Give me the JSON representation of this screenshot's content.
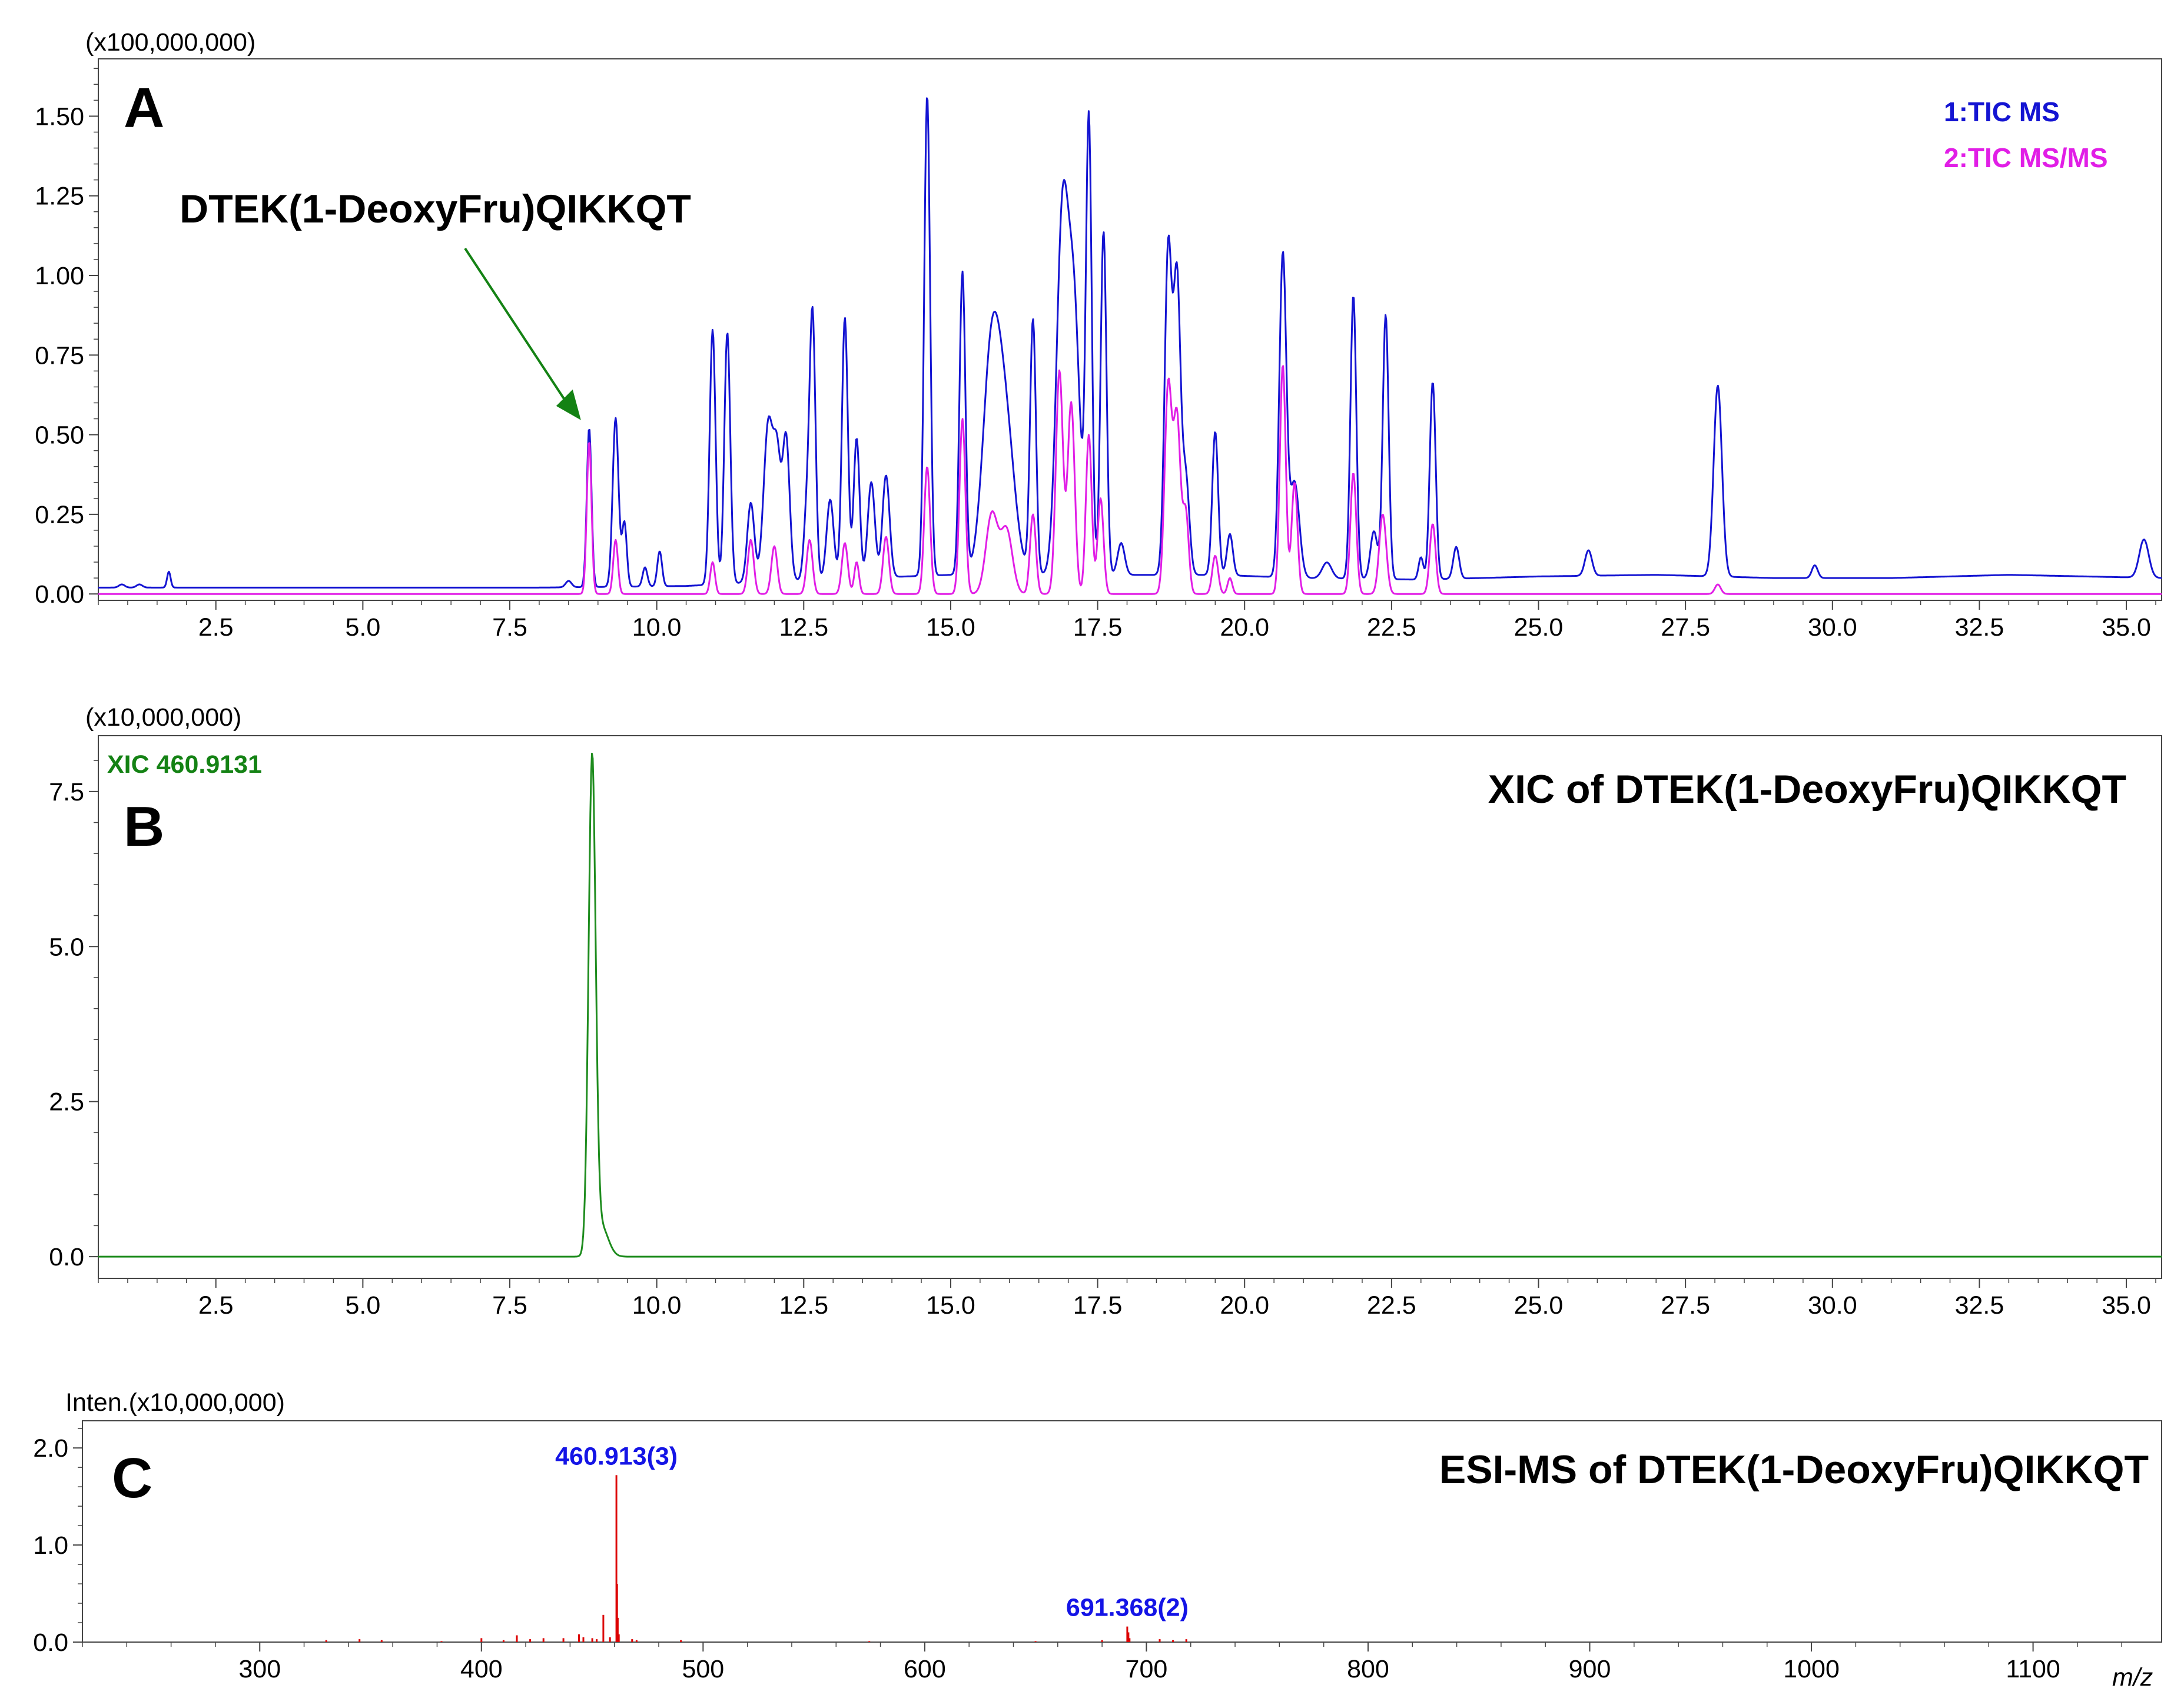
{
  "colors": {
    "tic_ms": "#1414d2",
    "tic_msms": "#e11ee6",
    "xic": "#1e8c1e",
    "spectrum": "#dc0000",
    "annotation_green": "#148214",
    "annotation_blue": "#1414e6"
  },
  "chart_data": [
    {
      "id": "A",
      "type": "line",
      "panel_label": "A",
      "y_multiplier": "(x100,000,000)",
      "xlim": [
        0.5,
        35.6
      ],
      "ylim": [
        -0.02,
        1.68
      ],
      "x_ticks": [
        "2.5",
        "5.0",
        "7.5",
        "10.0",
        "12.5",
        "15.0",
        "17.5",
        "20.0",
        "22.5",
        "25.0",
        "27.5",
        "30.0",
        "32.5",
        "35.0"
      ],
      "y_ticks": [
        "0.00",
        "0.25",
        "0.50",
        "0.75",
        "1.00",
        "1.25",
        "1.50"
      ],
      "legend": [
        "1:TIC MS",
        "2:TIC MS/MS"
      ],
      "annotation": "DTEK(1-DeoxyFru)QIKKQT",
      "annotation_target": [
        8.85,
        0.52
      ],
      "series": [
        {
          "name": "1:TIC MS",
          "baseline": [
            [
              0.5,
              0.02
            ],
            [
              8.0,
              0.02
            ],
            [
              10.5,
              0.025
            ],
            [
              12.0,
              0.04
            ],
            [
              13.5,
              0.05
            ],
            [
              15.0,
              0.06
            ],
            [
              17.5,
              0.06
            ],
            [
              19.5,
              0.06
            ],
            [
              21.0,
              0.05
            ],
            [
              23.0,
              0.045
            ],
            [
              25.0,
              0.055
            ],
            [
              27.0,
              0.06
            ],
            [
              29.0,
              0.05
            ],
            [
              31.0,
              0.05
            ],
            [
              33.0,
              0.06
            ],
            [
              35.6,
              0.05
            ]
          ],
          "peaks": [
            [
              0.9,
              0.01,
              0.05
            ],
            [
              1.2,
              0.01,
              0.05
            ],
            [
              1.7,
              0.05,
              0.03
            ],
            [
              8.5,
              0.02,
              0.05
            ],
            [
              8.85,
              0.5,
              0.04
            ],
            [
              9.3,
              0.53,
              0.05
            ],
            [
              9.45,
              0.2,
              0.04
            ],
            [
              9.8,
              0.06,
              0.04
            ],
            [
              10.05,
              0.11,
              0.04
            ],
            [
              10.95,
              0.8,
              0.05
            ],
            [
              11.2,
              0.79,
              0.05
            ],
            [
              11.6,
              0.25,
              0.06
            ],
            [
              11.9,
              0.5,
              0.08
            ],
            [
              12.05,
              0.35,
              0.06
            ],
            [
              12.2,
              0.45,
              0.06
            ],
            [
              12.55,
              0.2,
              0.05
            ],
            [
              12.65,
              0.83,
              0.05
            ],
            [
              12.95,
              0.25,
              0.06
            ],
            [
              13.2,
              0.82,
              0.05
            ],
            [
              13.4,
              0.44,
              0.05
            ],
            [
              13.65,
              0.3,
              0.06
            ],
            [
              13.9,
              0.32,
              0.06
            ],
            [
              14.6,
              1.51,
              0.05
            ],
            [
              15.2,
              0.95,
              0.05
            ],
            [
              15.7,
              0.7,
              0.15
            ],
            [
              15.95,
              0.4,
              0.15
            ],
            [
              16.4,
              0.8,
              0.05
            ],
            [
              16.9,
              1.1,
              0.1
            ],
            [
              17.1,
              0.8,
              0.1
            ],
            [
              17.35,
              1.42,
              0.05
            ],
            [
              17.6,
              1.08,
              0.05
            ],
            [
              17.9,
              0.1,
              0.06
            ],
            [
              18.7,
              1.02,
              0.06
            ],
            [
              18.85,
              0.92,
              0.06
            ],
            [
              19.0,
              0.3,
              0.06
            ],
            [
              19.5,
              0.45,
              0.05
            ],
            [
              19.75,
              0.13,
              0.05
            ],
            [
              20.65,
              1.01,
              0.06
            ],
            [
              20.85,
              0.3,
              0.08
            ],
            [
              21.4,
              0.05,
              0.08
            ],
            [
              21.85,
              0.89,
              0.05
            ],
            [
              22.2,
              0.15,
              0.06
            ],
            [
              22.4,
              0.83,
              0.05
            ],
            [
              23.0,
              0.07,
              0.04
            ],
            [
              23.2,
              0.62,
              0.05
            ],
            [
              23.6,
              0.1,
              0.05
            ],
            [
              25.85,
              0.08,
              0.06
            ],
            [
              28.05,
              0.6,
              0.07
            ],
            [
              29.7,
              0.04,
              0.05
            ],
            [
              35.3,
              0.12,
              0.08
            ]
          ]
        },
        {
          "name": "2:TIC MS/MS",
          "baseline": [
            [
              0.5,
              0.0
            ],
            [
              35.6,
              0.0
            ]
          ],
          "peaks": [
            [
              8.85,
              0.48,
              0.04
            ],
            [
              9.3,
              0.17,
              0.04
            ],
            [
              10.95,
              0.1,
              0.04
            ],
            [
              11.6,
              0.17,
              0.05
            ],
            [
              12.0,
              0.15,
              0.05
            ],
            [
              12.6,
              0.17,
              0.05
            ],
            [
              13.2,
              0.16,
              0.05
            ],
            [
              13.4,
              0.1,
              0.04
            ],
            [
              13.9,
              0.18,
              0.05
            ],
            [
              14.6,
              0.4,
              0.05
            ],
            [
              15.2,
              0.55,
              0.05
            ],
            [
              15.7,
              0.25,
              0.1
            ],
            [
              15.95,
              0.2,
              0.1
            ],
            [
              16.4,
              0.25,
              0.05
            ],
            [
              16.85,
              0.7,
              0.06
            ],
            [
              17.05,
              0.6,
              0.06
            ],
            [
              17.35,
              0.5,
              0.05
            ],
            [
              17.55,
              0.3,
              0.05
            ],
            [
              18.7,
              0.65,
              0.06
            ],
            [
              18.85,
              0.55,
              0.06
            ],
            [
              19.0,
              0.25,
              0.05
            ],
            [
              19.5,
              0.12,
              0.05
            ],
            [
              19.75,
              0.05,
              0.04
            ],
            [
              20.65,
              0.72,
              0.05
            ],
            [
              20.85,
              0.35,
              0.05
            ],
            [
              21.85,
              0.38,
              0.05
            ],
            [
              22.35,
              0.25,
              0.06
            ],
            [
              23.2,
              0.22,
              0.05
            ],
            [
              28.05,
              0.03,
              0.05
            ]
          ]
        }
      ]
    },
    {
      "id": "B",
      "type": "line",
      "panel_label": "B",
      "y_multiplier": "(x10,000,000)",
      "title": "XIC of DTEK(1-DeoxyFru)QIKKQT",
      "xlim": [
        0.5,
        35.6
      ],
      "ylim": [
        -0.35,
        8.4
      ],
      "x_ticks": [
        "2.5",
        "5.0",
        "7.5",
        "10.0",
        "12.5",
        "15.0",
        "17.5",
        "20.0",
        "22.5",
        "25.0",
        "27.5",
        "30.0",
        "32.5",
        "35.0"
      ],
      "y_ticks": [
        "0.0",
        "2.5",
        "5.0",
        "7.5"
      ],
      "series": [
        {
          "name": "XIC 460.9131",
          "baseline": [
            [
              0.5,
              0.0
            ],
            [
              35.6,
              0.0
            ]
          ],
          "peaks": [
            [
              8.9,
              7.9,
              0.06
            ],
            [
              9.05,
              0.5,
              0.12
            ]
          ]
        }
      ]
    },
    {
      "id": "C",
      "type": "bar",
      "panel_label": "C",
      "y_multiplier": "Inten.(x10,000,000)",
      "title": "ESI-MS of DTEK(1-DeoxyFru)QIKKQT",
      "x_axis_unit": "m/z",
      "xlim": [
        220,
        1158
      ],
      "ylim": [
        0,
        2.28
      ],
      "x_ticks": [
        "300",
        "400",
        "500",
        "600",
        "700",
        "800",
        "900",
        "1000",
        "1100"
      ],
      "y_ticks": [
        "0.0",
        "1.0",
        "2.0"
      ],
      "labels": [
        {
          "mz": 460.913,
          "text": "460.913(3)"
        },
        {
          "mz": 691.368,
          "text": "691.368(2)"
        }
      ],
      "peaks": [
        [
          330,
          0.02
        ],
        [
          345,
          0.03
        ],
        [
          355,
          0.02
        ],
        [
          382,
          0.01
        ],
        [
          400,
          0.04
        ],
        [
          410,
          0.02
        ],
        [
          416,
          0.07
        ],
        [
          422,
          0.03
        ],
        [
          428,
          0.04
        ],
        [
          437,
          0.04
        ],
        [
          444,
          0.08
        ],
        [
          446,
          0.05
        ],
        [
          450,
          0.04
        ],
        [
          452,
          0.03
        ],
        [
          455,
          0.28
        ],
        [
          458,
          0.05
        ],
        [
          460.913,
          1.72
        ],
        [
          461.2,
          0.6
        ],
        [
          461.5,
          0.25
        ],
        [
          462,
          0.08
        ],
        [
          468,
          0.03
        ],
        [
          470,
          0.02
        ],
        [
          490,
          0.02
        ],
        [
          575,
          0.01
        ],
        [
          650,
          0.01
        ],
        [
          680,
          0.02
        ],
        [
          691.368,
          0.16
        ],
        [
          691.9,
          0.1
        ],
        [
          692.4,
          0.04
        ],
        [
          706,
          0.03
        ],
        [
          712,
          0.02
        ],
        [
          718,
          0.03
        ]
      ]
    }
  ]
}
